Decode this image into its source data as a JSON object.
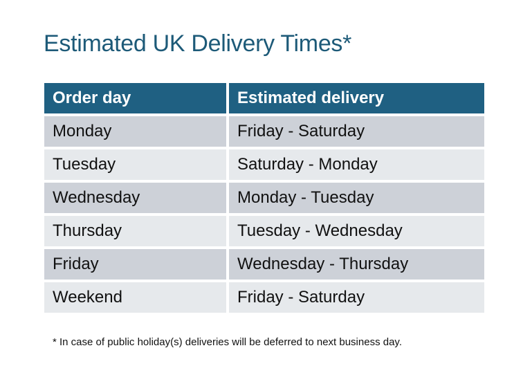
{
  "title": "Estimated UK Delivery Times*",
  "table": {
    "headers": [
      "Order day",
      "Estimated delivery"
    ],
    "rows": [
      [
        "Monday",
        "Friday - Saturday"
      ],
      [
        "Tuesday",
        "Saturday - Monday"
      ],
      [
        "Wednesday",
        "Monday - Tuesday"
      ],
      [
        "Thursday",
        "Tuesday - Wednesday"
      ],
      [
        "Friday",
        "Wednesday - Thursday"
      ],
      [
        "Weekend",
        "Friday - Saturday"
      ]
    ]
  },
  "footnote": "* In case of public holiday(s) deliveries will be deferred to next business day.",
  "colors": {
    "title": "#1d5a78",
    "header_bg": "#1f6082",
    "row_odd": "#cdd1d8",
    "row_even": "#e6e9ec"
  }
}
